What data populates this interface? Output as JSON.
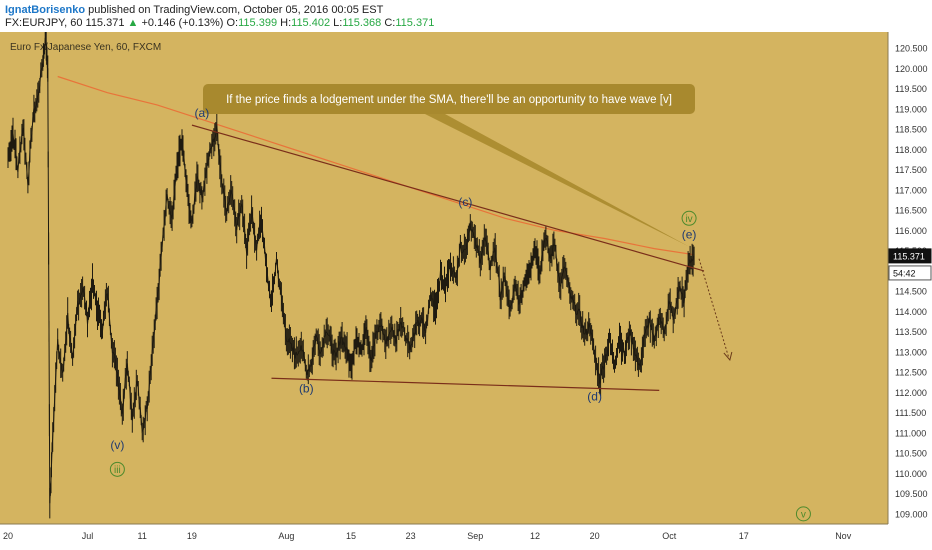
{
  "header": {
    "author": "IgnatBorisenko",
    "published_text": "published on TradingView.com, October 05, 2016 00:05 EST",
    "symbol": "FX:EURJPY, 60",
    "last_price": "115.371",
    "change_arrow": "▲",
    "change": "+0.146 (+0.13%)",
    "open_label": "O:",
    "open": "115.399",
    "high_label": "H:",
    "high": "115.402",
    "low_label": "L:",
    "low": "115.368",
    "close_label": "C:",
    "close": "115.371"
  },
  "colors": {
    "background": "#d4b460",
    "candles": "#1e1a10",
    "sma": "#e8743a",
    "trendline": "#7a2e1a",
    "callout": "#a8892e",
    "wave_label": "#1f3a70",
    "circle_label": "#4d8a2c",
    "price_tag": "#111111"
  },
  "chart_data": {
    "type": "line",
    "title": "Euro Fx/Japanese Yen, 60, FXCM",
    "ylim": [
      108.75,
      120.9
    ],
    "xlim": [
      0,
      175
    ],
    "x_unit": "days since 2016-06-20",
    "y_ticks": [
      "120.500",
      "120.000",
      "119.500",
      "119.000",
      "118.500",
      "118.000",
      "117.500",
      "117.000",
      "116.500",
      "116.000",
      "115.500",
      "115.000",
      "114.500",
      "114.000",
      "113.500",
      "113.000",
      "112.500",
      "112.000",
      "111.500",
      "111.000",
      "110.500",
      "110.000",
      "109.500",
      "109.000"
    ],
    "y_tick_values": [
      120.5,
      120,
      119.5,
      119,
      118.5,
      118,
      117.5,
      117,
      116.5,
      116,
      115.5,
      115,
      114.5,
      114,
      113.5,
      113,
      112.5,
      112,
      111.5,
      111,
      110.5,
      110,
      109.5,
      109
    ],
    "x_ticks": [
      {
        "label": "20",
        "x": 0
      },
      {
        "label": "Jul",
        "x": 16
      },
      {
        "label": "11",
        "x": 27
      },
      {
        "label": "19",
        "x": 37
      },
      {
        "label": "Aug",
        "x": 56
      },
      {
        "label": "15",
        "x": 69
      },
      {
        "label": "23",
        "x": 81
      },
      {
        "label": "Sep",
        "x": 94
      },
      {
        "label": "12",
        "x": 106
      },
      {
        "label": "20",
        "x": 118
      },
      {
        "label": "Oct",
        "x": 133
      },
      {
        "label": "17",
        "x": 148
      },
      {
        "label": "Nov",
        "x": 168
      }
    ],
    "series": [
      {
        "name": "EURJPY",
        "points": [
          [
            0,
            117.8
          ],
          [
            1,
            118.4
          ],
          [
            2,
            117.5
          ],
          [
            3,
            118.6
          ],
          [
            4,
            117.2
          ],
          [
            5,
            118.8
          ],
          [
            6,
            119.3
          ],
          [
            7,
            120.2
          ],
          [
            7.6,
            120.8
          ],
          [
            8,
            119.9
          ],
          [
            8.4,
            109.2
          ],
          [
            9,
            111.0
          ],
          [
            10,
            113.2
          ],
          [
            11,
            112.4
          ],
          [
            12,
            113.9
          ],
          [
            13,
            112.7
          ],
          [
            14,
            114.2
          ],
          [
            15,
            114.6
          ],
          [
            16,
            113.8
          ],
          [
            17,
            114.7
          ],
          [
            18,
            114.0
          ],
          [
            19,
            113.6
          ],
          [
            20,
            114.5
          ],
          [
            21,
            113.1
          ],
          [
            22,
            112.5
          ],
          [
            23,
            111.5
          ],
          [
            24,
            112.8
          ],
          [
            25,
            111.4
          ],
          [
            26,
            112.3
          ],
          [
            27,
            111.0
          ],
          [
            28,
            111.7
          ],
          [
            29,
            113.0
          ],
          [
            30,
            114.2
          ],
          [
            31,
            115.6
          ],
          [
            32,
            116.8
          ],
          [
            33,
            116.2
          ],
          [
            34,
            117.6
          ],
          [
            35,
            118.2
          ],
          [
            36,
            117.0
          ],
          [
            37,
            116.1
          ],
          [
            38,
            117.4
          ],
          [
            39,
            116.8
          ],
          [
            40,
            117.6
          ],
          [
            41,
            118.1
          ],
          [
            42,
            118.5
          ],
          [
            43,
            117.2
          ],
          [
            44,
            116.5
          ],
          [
            45,
            117.0
          ],
          [
            46,
            116.1
          ],
          [
            47,
            116.7
          ],
          [
            48,
            115.5
          ],
          [
            49,
            116.4
          ],
          [
            50,
            115.6
          ],
          [
            51,
            116.3
          ],
          [
            52,
            115.0
          ],
          [
            53,
            114.2
          ],
          [
            54,
            115.3
          ],
          [
            55,
            114.3
          ],
          [
            56,
            113.4
          ],
          [
            57,
            113.1
          ],
          [
            58,
            112.9
          ],
          [
            59,
            113.2
          ],
          [
            60,
            112.5
          ],
          [
            61,
            112.7
          ],
          [
            62,
            113.4
          ],
          [
            63,
            113.0
          ],
          [
            64,
            113.6
          ],
          [
            65,
            113.2
          ],
          [
            66,
            112.8
          ],
          [
            67,
            113.4
          ],
          [
            68,
            113.1
          ],
          [
            69,
            112.6
          ],
          [
            70,
            113.4
          ],
          [
            71,
            113.0
          ],
          [
            72,
            113.7
          ],
          [
            73,
            112.8
          ],
          [
            74,
            113.4
          ],
          [
            75,
            113.7
          ],
          [
            76,
            113.2
          ],
          [
            77,
            113.6
          ],
          [
            78,
            113.3
          ],
          [
            79,
            113.8
          ],
          [
            80,
            113.4
          ],
          [
            81,
            113.1
          ],
          [
            82,
            113.6
          ],
          [
            83,
            113.8
          ],
          [
            84,
            113.5
          ],
          [
            85,
            114.4
          ],
          [
            86,
            114.1
          ],
          [
            87,
            114.9
          ],
          [
            88,
            114.6
          ],
          [
            89,
            115.2
          ],
          [
            90,
            114.8
          ],
          [
            91,
            115.6
          ],
          [
            92,
            115.5
          ],
          [
            93,
            116.2
          ],
          [
            94,
            115.7
          ],
          [
            95,
            115.3
          ],
          [
            96,
            115.8
          ],
          [
            97,
            115.1
          ],
          [
            98,
            115.6
          ],
          [
            99,
            114.4
          ],
          [
            100,
            114.8
          ],
          [
            101,
            114.0
          ],
          [
            102,
            114.6
          ],
          [
            103,
            114.2
          ],
          [
            104,
            114.8
          ],
          [
            105,
            115.1
          ],
          [
            106,
            115.6
          ],
          [
            107,
            115.0
          ],
          [
            108,
            115.9
          ],
          [
            109,
            115.3
          ],
          [
            110,
            115.7
          ],
          [
            111,
            114.6
          ],
          [
            112,
            115.1
          ],
          [
            113,
            114.4
          ],
          [
            114,
            114.1
          ],
          [
            115,
            113.9
          ],
          [
            116,
            113.4
          ],
          [
            117,
            113.7
          ],
          [
            118,
            112.9
          ],
          [
            119,
            112.3
          ],
          [
            120,
            112.8
          ],
          [
            121,
            113.3
          ],
          [
            122,
            112.7
          ],
          [
            123,
            113.4
          ],
          [
            124,
            112.9
          ],
          [
            125,
            113.5
          ],
          [
            126,
            113.1
          ],
          [
            127,
            112.6
          ],
          [
            128,
            113.3
          ],
          [
            129,
            113.8
          ],
          [
            130,
            113.2
          ],
          [
            131,
            113.9
          ],
          [
            132,
            113.5
          ],
          [
            133,
            114.2
          ],
          [
            134,
            113.8
          ],
          [
            135,
            114.6
          ],
          [
            136,
            114.3
          ],
          [
            137,
            115.2
          ],
          [
            138,
            115.37
          ]
        ]
      },
      {
        "name": "SMA",
        "points": [
          [
            10,
            119.8
          ],
          [
            20,
            119.4
          ],
          [
            30,
            119.1
          ],
          [
            40,
            118.7
          ],
          [
            50,
            118.3
          ],
          [
            60,
            117.9
          ],
          [
            70,
            117.5
          ],
          [
            80,
            117.1
          ],
          [
            90,
            116.7
          ],
          [
            100,
            116.3
          ],
          [
            110,
            116.0
          ],
          [
            120,
            115.8
          ],
          [
            130,
            115.55
          ],
          [
            138,
            115.4
          ]
        ]
      }
    ],
    "trendlines": [
      {
        "from": [
          37,
          118.6
        ],
        "to": [
          140,
          115.0
        ]
      },
      {
        "from": [
          53,
          112.35
        ],
        "to": [
          131,
          112.05
        ]
      }
    ],
    "projection": {
      "from": [
        139,
        115.3
      ],
      "to": [
        145,
        112.85
      ]
    },
    "wave_labels": [
      {
        "text": "(a)",
        "x": 39,
        "y": 118.8
      },
      {
        "text": "(b)",
        "x": 60,
        "y": 112.0
      },
      {
        "text": "(c)",
        "x": 92,
        "y": 116.6
      },
      {
        "text": "(d)",
        "x": 118,
        "y": 111.8
      },
      {
        "text": "(e)",
        "x": 137,
        "y": 115.8
      },
      {
        "text": "(v)",
        "x": 22,
        "y": 110.6
      }
    ],
    "circle_labels": [
      {
        "text": "iii",
        "x": 22,
        "y": 110.1
      },
      {
        "text": "iv",
        "x": 137,
        "y": 116.3
      },
      {
        "text": "v",
        "x": 160,
        "y": 109.0
      }
    ],
    "annotation": {
      "text": "If the price finds a lodgement under the SMA, there'll be an opportunity to have wave [v]",
      "pointer_to": [
        137,
        115.6
      ]
    },
    "price_tags": [
      {
        "label": "115.371",
        "value": 115.371,
        "style": "dark"
      },
      {
        "label": "54:42",
        "value": 114.95,
        "style": "light"
      }
    ]
  }
}
